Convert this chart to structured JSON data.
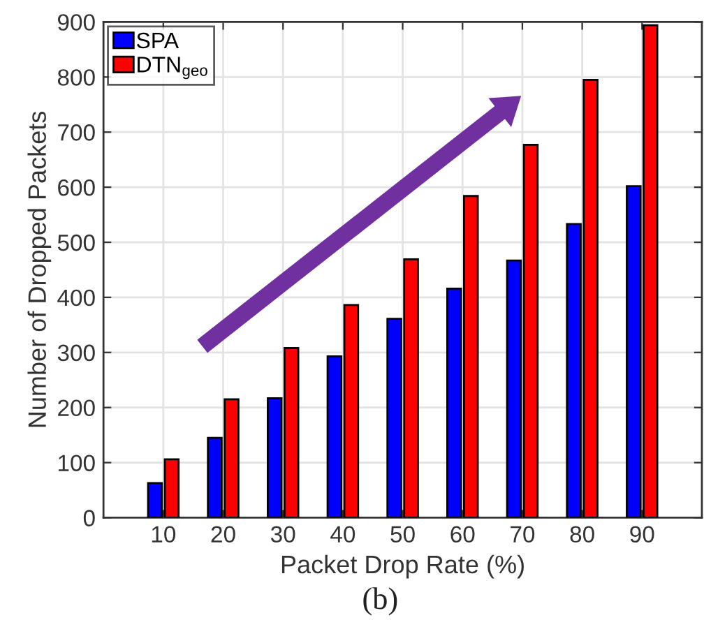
{
  "chart_data": {
    "type": "bar",
    "x": [
      10,
      20,
      30,
      40,
      50,
      60,
      70,
      80,
      90
    ],
    "xlim": [
      0,
      100
    ],
    "xticks": [
      10,
      20,
      30,
      40,
      50,
      60,
      70,
      80,
      90
    ],
    "ylim": [
      0,
      900
    ],
    "yticks": [
      0,
      100,
      200,
      300,
      400,
      500,
      600,
      700,
      800,
      900
    ],
    "xlabel": "Packet Drop Rate (%)",
    "ylabel": "Number of Dropped Packets",
    "series": [
      {
        "name": "SPA",
        "color": "#0000ff",
        "values": [
          63,
          145,
          217,
          293,
          361,
          416,
          467,
          533,
          602
        ]
      },
      {
        "name": "DTN$_{geo}$",
        "color": "#ff0000",
        "values": [
          106,
          215,
          308,
          386,
          469,
          584,
          677,
          795,
          894
        ]
      },
      {
        "type": "line",
        "color": "#7030a0",
        "x": [
          16.5,
          69.8
        ],
        "values": [
          311,
          766
        ]
      }
    ],
    "legend": "top left",
    "grid": true,
    "annotations": [
      "(b)"
    ]
  }
}
